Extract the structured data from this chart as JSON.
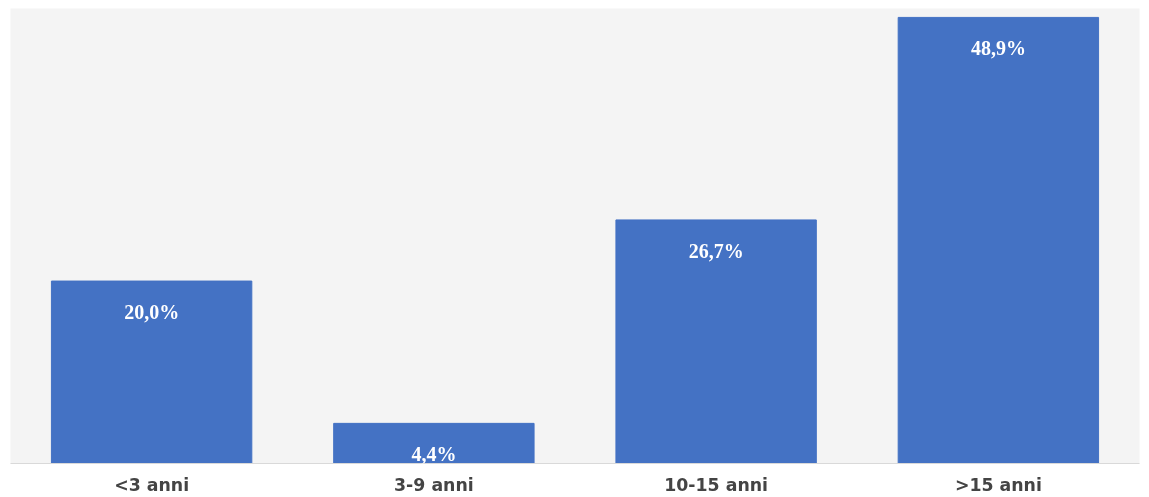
{
  "chart_data": {
    "type": "bar",
    "categories": [
      "<3 anni",
      "3-9 anni",
      "10-15 anni",
      ">15 anni"
    ],
    "values": [
      20.0,
      4.4,
      26.7,
      48.9
    ],
    "value_labels": [
      "20,0%",
      "4,4%",
      "26,7%",
      "48,9%"
    ],
    "color": "#4472c4",
    "grid": false
  }
}
